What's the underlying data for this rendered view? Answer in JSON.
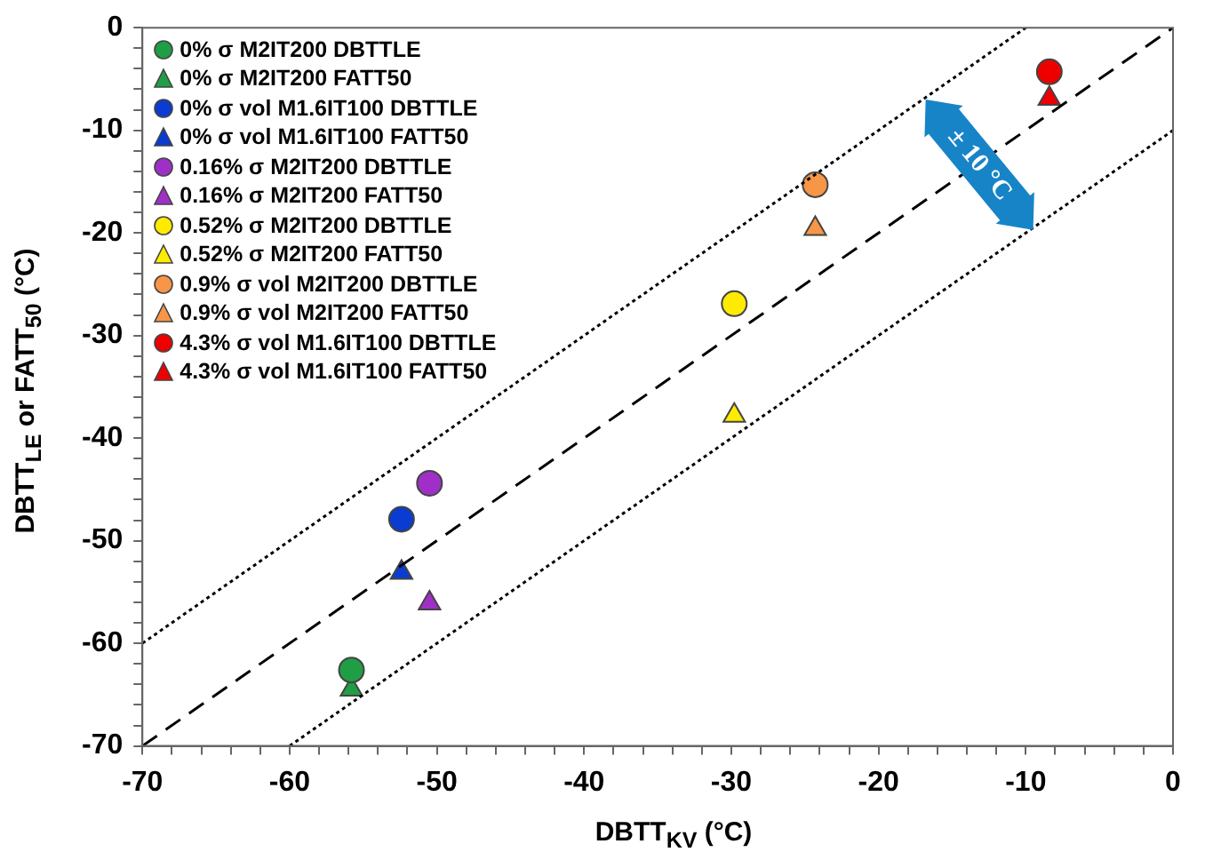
{
  "chart_data": {
    "type": "scatter",
    "xlabel": "DBTT$_{KV}$ (°C)",
    "ylabel": "DBTT$_{LE}$ or FATT$_{50}$ (°C)",
    "annotations": [
      "± 10 °C"
    ],
    "xlim": [
      -70,
      0
    ],
    "ylim": [
      -70,
      0
    ],
    "xticks": [
      -70,
      {
        "value": -68,
        "label": null
      },
      {
        "value": -66,
        "label": null
      },
      {
        "value": -64,
        "label": null
      },
      {
        "value": -62,
        "label": null
      },
      -60,
      {
        "value": -58,
        "label": null
      },
      {
        "value": -56,
        "label": null
      },
      {
        "value": -54,
        "label": null
      },
      {
        "value": -52,
        "label": null
      },
      -50,
      {
        "value": -48,
        "label": null
      },
      {
        "value": -46,
        "label": null
      },
      {
        "value": -44,
        "label": null
      },
      {
        "value": -42,
        "label": null
      },
      -40,
      {
        "value": -38,
        "label": null
      },
      {
        "value": -36,
        "label": null
      },
      {
        "value": -34,
        "label": null
      },
      {
        "value": -32,
        "label": null
      },
      -30,
      {
        "value": -28,
        "label": null
      },
      {
        "value": -26,
        "label": null
      },
      {
        "value": -24,
        "label": null
      },
      {
        "value": -22,
        "label": null
      },
      -20,
      {
        "value": -18,
        "label": null
      },
      {
        "value": -16,
        "label": null
      },
      {
        "value": -14,
        "label": null
      },
      {
        "value": -12,
        "label": null
      },
      -10,
      {
        "value": -8,
        "label": null
      },
      {
        "value": -6,
        "label": null
      },
      {
        "value": -4,
        "label": null
      },
      {
        "value": -2,
        "label": null
      },
      0
    ],
    "yticks": [
      -70,
      {
        "value": -68,
        "label": null
      },
      {
        "value": -66,
        "label": null
      },
      {
        "value": -64,
        "label": null
      },
      {
        "value": -62,
        "label": null
      },
      -60,
      {
        "value": -58,
        "label": null
      },
      {
        "value": -56,
        "label": null
      },
      {
        "value": -54,
        "label": null
      },
      {
        "value": -52,
        "label": null
      },
      -50,
      {
        "value": -48,
        "label": null
      },
      {
        "value": -46,
        "label": null
      },
      {
        "value": -44,
        "label": null
      },
      {
        "value": -42,
        "label": null
      },
      -40,
      {
        "value": -38,
        "label": null
      },
      {
        "value": -36,
        "label": null
      },
      {
        "value": -34,
        "label": null
      },
      {
        "value": -32,
        "label": null
      },
      -30,
      {
        "value": -28,
        "label": null
      },
      {
        "value": -26,
        "label": null
      },
      {
        "value": -24,
        "label": null
      },
      {
        "value": -22,
        "label": null
      },
      -20,
      {
        "value": -18,
        "label": null
      },
      {
        "value": -16,
        "label": null
      },
      {
        "value": -14,
        "label": null
      },
      {
        "value": -12,
        "label": null
      },
      -10,
      {
        "value": -8,
        "label": null
      },
      {
        "value": -6,
        "label": null
      },
      {
        "value": -4,
        "label": null
      },
      {
        "value": -2,
        "label": null
      },
      0
    ],
    "grid": false,
    "legend": "top left",
    "series": [
      {
        "type": "line",
        "x": [
          -70,
          -10
        ],
        "values": [
          -60,
          0
        ],
        "color": "#000000",
        "line_style": "dotted",
        "marker": "none"
      },
      {
        "type": "line",
        "x": [
          -70,
          0
        ],
        "values": [
          -70,
          0
        ],
        "color": "#000000",
        "line_style": "dashed",
        "marker": "none"
      },
      {
        "type": "line",
        "x": [
          -60,
          0
        ],
        "values": [
          -70,
          -10
        ],
        "color": "#000000",
        "line_style": "dotted",
        "marker": "none"
      },
      {
        "name": "0% σ M2IT200 DBTTLE",
        "marker": "circle",
        "color": "#1f9e46",
        "x": [
          -55.8
        ],
        "values": [
          -62.6
        ]
      },
      {
        "name": "0% σ M2IT200 FATT50",
        "marker": "triangle",
        "color": "#1f9e46",
        "x": [
          -55.8
        ],
        "values": [
          -64.5
        ]
      },
      {
        "name": "0% σ vol M1.6IT100 DBTTLE",
        "marker": "circle",
        "color": "#0a3cd2",
        "x": [
          -52.4
        ],
        "values": [
          -47.9
        ]
      },
      {
        "name": "0% σ vol M1.6IT100 FATT50",
        "marker": "triangle",
        "color": "#0a3cd2",
        "x": [
          -52.4
        ],
        "values": [
          -53.1
        ]
      },
      {
        "name": "0.16% σ M2IT200 DBTTLE",
        "marker": "circle",
        "color": "#a02fc8",
        "x": [
          -50.5
        ],
        "values": [
          -44.4
        ]
      },
      {
        "name": "0.16% σ M2IT200 FATT50",
        "marker": "triangle",
        "color": "#a02fc8",
        "x": [
          -50.5
        ],
        "values": [
          -56.1
        ]
      },
      {
        "name": "0.52% σ M2IT200 DBTTLE",
        "marker": "circle",
        "color": "#ffeb00",
        "x": [
          -29.8
        ],
        "values": [
          -26.9
        ]
      },
      {
        "name": "0.52% σ M2IT200 FATT50",
        "marker": "triangle",
        "color": "#ffeb00",
        "x": [
          -29.8
        ],
        "values": [
          -37.8
        ]
      },
      {
        "name": "0.9% σ vol M2IT200 DBTTLE",
        "marker": "circle",
        "color": "#f79646",
        "x": [
          -24.3
        ],
        "values": [
          -15.3
        ]
      },
      {
        "name": "0.9% σ vol M2IT200 FATT50",
        "marker": "triangle",
        "color": "#f79646",
        "x": [
          -24.3
        ],
        "values": [
          -19.6
        ]
      },
      {
        "name": "4.3% σ vol M1.6IT100 DBTTLE",
        "marker": "circle",
        "color": "#ee0000",
        "x": [
          -8.4
        ],
        "values": [
          -4.3
        ]
      },
      {
        "name": "4.3% σ vol M1.6IT100 FATT50",
        "marker": "triangle",
        "color": "#ee0000",
        "x": [
          -8.4
        ],
        "values": [
          -6.9
        ]
      }
    ]
  }
}
